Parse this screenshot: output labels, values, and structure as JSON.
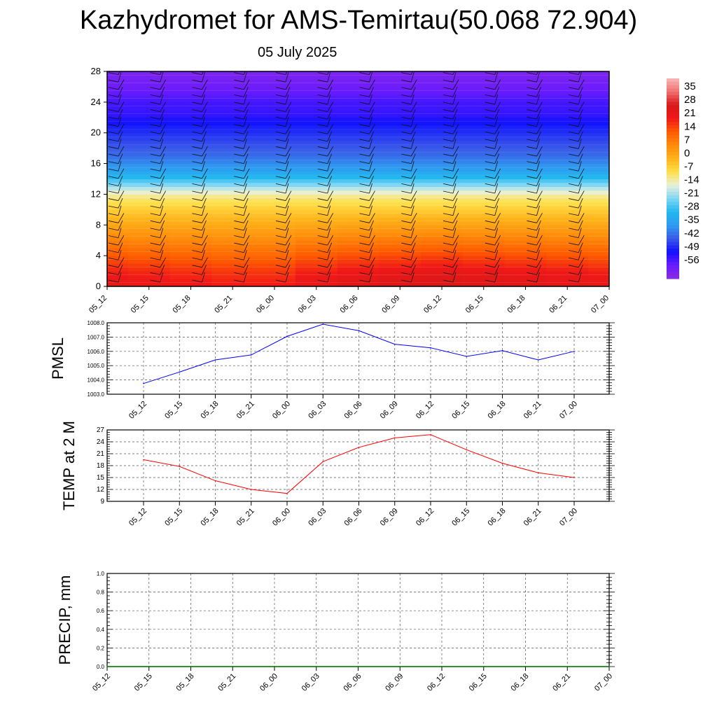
{
  "title": "Kazhydromet for AMS-Temirtau(50.068 72.904)",
  "subtitle": "05 July 2025",
  "chart_data": [
    {
      "type": "heatmap",
      "x_ticks": [
        "05_12",
        "05_15",
        "05_18",
        "05_21",
        "06_00",
        "06_03",
        "06_06",
        "06_09",
        "06_12",
        "06_15",
        "06_18",
        "06_21",
        "07_00"
      ],
      "y_ticks": [
        "0",
        "4",
        "8",
        "12",
        "16",
        "20",
        "24",
        "28"
      ],
      "ylim": [
        0,
        28
      ],
      "colorbar": {
        "labels": [
          "35",
          "28",
          "21",
          "14",
          "7",
          "0",
          "-7",
          "-14",
          "-21",
          "-28",
          "-35",
          "-42",
          "-49",
          "-56"
        ],
        "range": [
          -63,
          42
        ],
        "stops": [
          {
            "v": -63,
            "c": "#8a2be2"
          },
          {
            "v": -56,
            "c": "#6a1bff"
          },
          {
            "v": -49,
            "c": "#1010ff"
          },
          {
            "v": -42,
            "c": "#3a5ae8"
          },
          {
            "v": -35,
            "c": "#2e9bf0"
          },
          {
            "v": -28,
            "c": "#20b8ef"
          },
          {
            "v": -21,
            "c": "#80d6f5"
          },
          {
            "v": -14,
            "c": "#e8f0d8"
          },
          {
            "v": -7,
            "c": "#ffe04a"
          },
          {
            "v": 0,
            "c": "#ffb21a"
          },
          {
            "v": 7,
            "c": "#ff8a0a"
          },
          {
            "v": 14,
            "c": "#ff5a00"
          },
          {
            "v": 21,
            "c": "#f01818"
          },
          {
            "v": 28,
            "c": "#d81818"
          },
          {
            "v": 35,
            "c": "#f07070"
          },
          {
            "v": 42,
            "c": "#f8b8b8"
          }
        ]
      },
      "profile": [
        {
          "h": 0,
          "v": 24
        },
        {
          "h": 2,
          "v": 20
        },
        {
          "h": 4,
          "v": 14
        },
        {
          "h": 6,
          "v": 8
        },
        {
          "h": 8,
          "v": 2
        },
        {
          "h": 10,
          "v": -4
        },
        {
          "h": 11.5,
          "v": -9
        },
        {
          "h": 12.5,
          "v": -15
        },
        {
          "h": 13.5,
          "v": -23
        },
        {
          "h": 15,
          "v": -33
        },
        {
          "h": 17,
          "v": -40
        },
        {
          "h": 19,
          "v": -44
        },
        {
          "h": 21,
          "v": -48
        },
        {
          "h": 22.5,
          "v": -52
        },
        {
          "h": 24,
          "v": -53
        },
        {
          "h": 26,
          "v": -57
        },
        {
          "h": 28,
          "v": -60
        }
      ],
      "warm_bias": [
        0,
        -1,
        -2,
        -3,
        -3,
        0,
        2,
        3,
        4,
        3,
        2,
        1,
        0
      ]
    },
    {
      "type": "line",
      "ylabel": "PMSL",
      "ylim": [
        1003.0,
        1008.0
      ],
      "y_ticks": [
        "1003.0",
        "1004.0",
        "1005.0",
        "1006.0",
        "1007.0",
        "1008.0"
      ],
      "x": [
        "05_12",
        "05_15",
        "05_18",
        "05_21",
        "06_00",
        "06_03",
        "06_06",
        "06_09",
        "06_12",
        "06_15",
        "06_18",
        "06_21",
        "07_00"
      ],
      "values": [
        1003.75,
        1004.55,
        1005.4,
        1005.75,
        1007.05,
        1007.9,
        1007.45,
        1006.5,
        1006.25,
        1005.65,
        1006.05,
        1005.4,
        1006.0
      ],
      "color": "#0000ff"
    },
    {
      "type": "line",
      "ylabel": "TEMP at 2 M",
      "ylim": [
        9,
        27
      ],
      "y_ticks": [
        "9",
        "12",
        "15",
        "18",
        "21",
        "24",
        "27"
      ],
      "x": [
        "05_12",
        "05_15",
        "05_18",
        "05_21",
        "06_00",
        "06_03",
        "06_06",
        "06_09",
        "06_12",
        "06_15",
        "06_18",
        "06_21",
        "07_00"
      ],
      "values": [
        19.5,
        17.8,
        14.2,
        12.0,
        11.0,
        19.0,
        22.6,
        25.0,
        25.8,
        22.0,
        18.6,
        16.2,
        15.0
      ],
      "color": "#ff0000"
    },
    {
      "type": "line",
      "ylabel": "PRECIP, mm",
      "ylim": [
        0.0,
        1.0
      ],
      "y_ticks": [
        "0.0",
        "0.2",
        "0.4",
        "0.6",
        "0.8",
        "1.0"
      ],
      "x": [
        "05_12",
        "05_15",
        "05_18",
        "05_21",
        "06_00",
        "06_03",
        "06_06",
        "06_09",
        "06_12",
        "06_15",
        "06_18",
        "06_21",
        "07_00"
      ],
      "values": [
        0,
        0,
        0,
        0,
        0,
        0,
        0,
        0,
        0,
        0,
        0,
        0,
        0
      ],
      "color": "#008000"
    }
  ]
}
